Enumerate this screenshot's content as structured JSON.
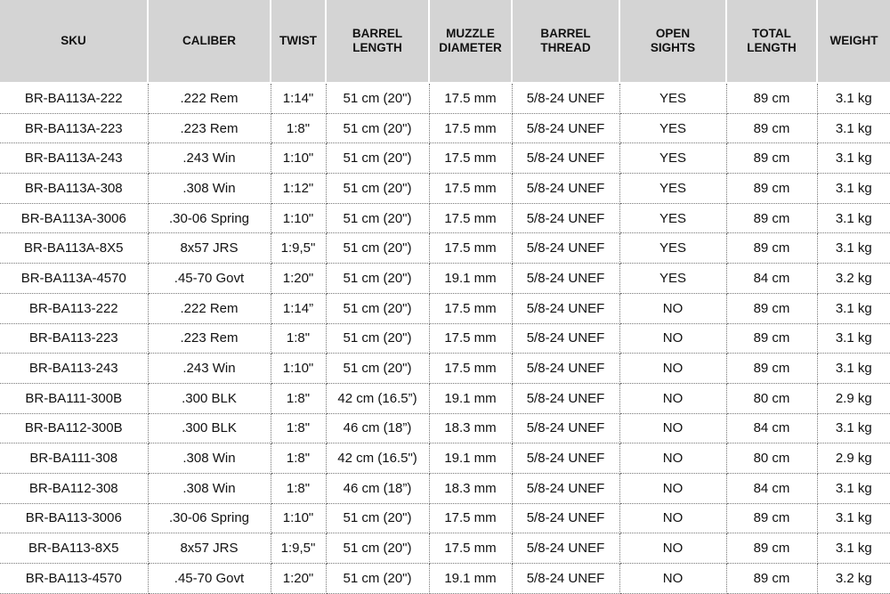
{
  "headers": [
    "SKU",
    "CALIBER",
    "TWIST",
    "BARREL LENGTH",
    "MUZZLE DIAMETER",
    "BARREL THREAD",
    "OPEN SIGHTS",
    "TOTAL LENGTH",
    "WEIGHT"
  ],
  "rows": [
    [
      "BR-BA113A-222",
      ".222 Rem",
      "1:14\"",
      "51 cm (20\")",
      "17.5 mm",
      "5/8-24 UNEF",
      "YES",
      "89 cm",
      "3.1 kg"
    ],
    [
      "BR-BA113A-223",
      ".223 Rem",
      "1:8\"",
      "51 cm (20\")",
      "17.5 mm",
      "5/8-24 UNEF",
      "YES",
      "89 cm",
      "3.1 kg"
    ],
    [
      "BR-BA113A-243",
      ".243 Win",
      "1:10\"",
      "51 cm (20\")",
      "17.5 mm",
      "5/8-24 UNEF",
      "YES",
      "89 cm",
      "3.1 kg"
    ],
    [
      "BR-BA113A-308",
      ".308 Win",
      "1:12\"",
      "51 cm (20\")",
      "17.5 mm",
      "5/8-24 UNEF",
      "YES",
      "89 cm",
      "3.1 kg"
    ],
    [
      "BR-BA113A-3006",
      ".30-06 Spring",
      "1:10\"",
      "51 cm (20\")",
      "17.5 mm",
      "5/8-24 UNEF",
      "YES",
      "89 cm",
      "3.1 kg"
    ],
    [
      "BR-BA113A-8X5",
      "8x57 JRS",
      "1:9,5\"",
      "51 cm (20\")",
      "17.5 mm",
      "5/8-24 UNEF",
      "YES",
      "89 cm",
      "3.1 kg"
    ],
    [
      "BR-BA113A-4570",
      ".45-70 Govt",
      "1:20\"",
      "51 cm (20\")",
      "19.1 mm",
      "5/8-24 UNEF",
      "YES",
      "84 cm",
      "3.2 kg"
    ],
    [
      "BR-BA113-222",
      ".222 Rem",
      "1:14”",
      "51 cm (20\")",
      "17.5 mm",
      "5/8-24 UNEF",
      "NO",
      "89 cm",
      "3.1 kg"
    ],
    [
      "BR-BA113-223",
      ".223 Rem",
      "1:8\"",
      "51 cm (20\")",
      "17.5 mm",
      "5/8-24 UNEF",
      "NO",
      "89 cm",
      "3.1 kg"
    ],
    [
      "BR-BA113-243",
      ".243 Win",
      "1:10\"",
      "51 cm (20\")",
      "17.5 mm",
      "5/8-24 UNEF",
      "NO",
      "89 cm",
      "3.1 kg"
    ],
    [
      "BR-BA111-300B",
      ".300 BLK",
      "1:8\"",
      "42 cm (16.5”)",
      "19.1 mm",
      "5/8-24 UNEF",
      "NO",
      "80 cm",
      "2.9 kg"
    ],
    [
      "BR-BA112-300B",
      ".300 BLK",
      "1:8\"",
      "46 cm (18”)",
      "18.3 mm",
      "5/8-24 UNEF",
      "NO",
      "84 cm",
      "3.1 kg"
    ],
    [
      "BR-BA111-308",
      ".308 Win",
      "1:8\"",
      "42 cm (16.5\")",
      "19.1 mm",
      "5/8-24 UNEF",
      "NO",
      "80 cm",
      "2.9 kg"
    ],
    [
      "BR-BA112-308",
      ".308 Win",
      "1:8\"",
      "46 cm (18”)",
      "18.3 mm",
      "5/8-24 UNEF",
      "NO",
      "84 cm",
      "3.1 kg"
    ],
    [
      "BR-BA113-3006",
      ".30-06 Spring",
      "1:10\"",
      "51 cm (20\")",
      "17.5 mm",
      "5/8-24 UNEF",
      "NO",
      "89 cm",
      "3.1 kg"
    ],
    [
      "BR-BA113-8X5",
      "8x57 JRS",
      "1:9,5\"",
      "51 cm (20\")",
      "17.5 mm",
      "5/8-24 UNEF",
      "NO",
      "89 cm",
      "3.1 kg"
    ],
    [
      "BR-BA113-4570",
      ".45-70 Govt",
      "1:20\"",
      "51 cm (20\")",
      "19.1 mm",
      "5/8-24 UNEF",
      "NO",
      "89 cm",
      "3.2 kg"
    ]
  ]
}
